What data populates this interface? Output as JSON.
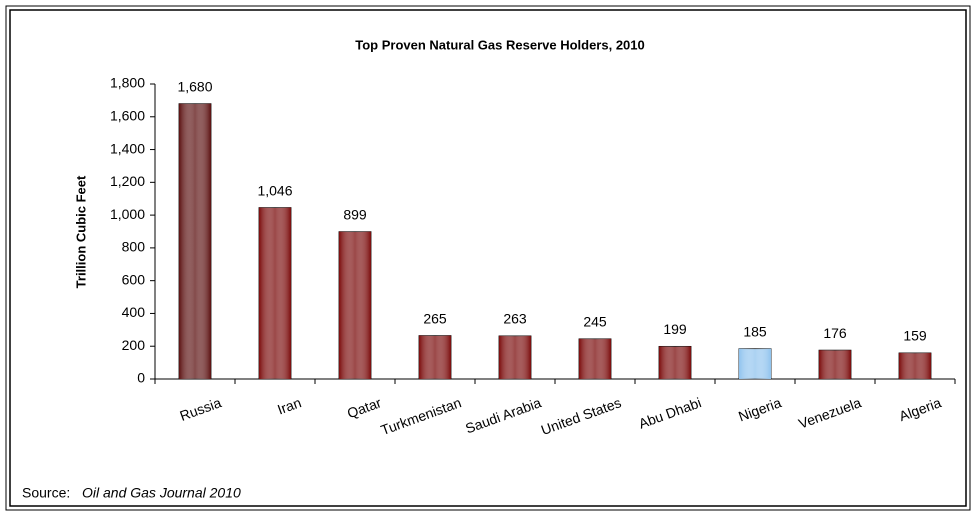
{
  "chart_data": {
    "type": "bar",
    "title": "Top Proven Natural Gas Reserve Holders, 2010",
    "y_label": "Trillion Cubic Feet",
    "categories": [
      "Russia",
      "Iran",
      "Qatar",
      "Turkmenistan",
      "Saudi Arabia",
      "United States",
      "Abu Dhabi",
      "Nigeria",
      "Venezuela",
      "Algeria"
    ],
    "values": [
      1680,
      1046,
      899,
      265,
      263,
      245,
      199,
      185,
      176,
      159
    ],
    "value_labels": [
      "1,680",
      "1,046",
      "899",
      "265",
      "263",
      "245",
      "199",
      "185",
      "176",
      "159"
    ],
    "colors": [
      "#5a0f0f",
      "#7a0a0a",
      "#7a0a0a",
      "#7a0a0a",
      "#7a0a0a",
      "#7a0a0a",
      "#7a0a0a",
      "#8fc3ee",
      "#7a0a0a",
      "#7a0a0a"
    ],
    "ylim": [
      0,
      1800
    ],
    "yticks": [
      0,
      200,
      400,
      600,
      800,
      {
        "value": 1000,
        "label": "1,000"
      },
      {
        "value": 1200,
        "label": "1,200"
      },
      {
        "value": 1400,
        "label": "1,400"
      },
      {
        "value": 1600,
        "label": "1,600"
      },
      {
        "value": 1800,
        "label": "1,800"
      }
    ],
    "source_label": "Source:",
    "source": "Oil and Gas Journal 2010"
  }
}
